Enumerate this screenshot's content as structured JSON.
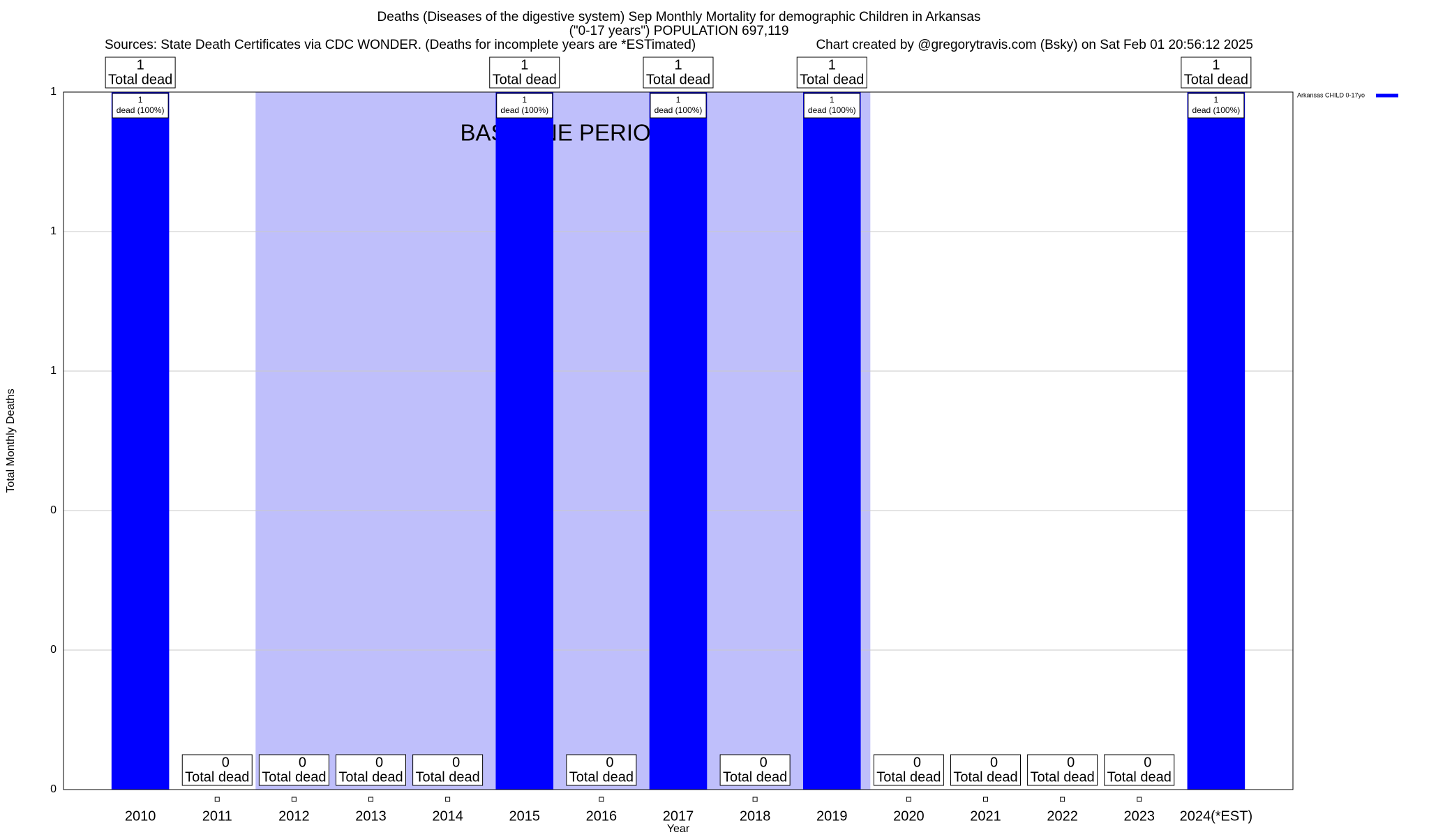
{
  "chart_data": {
    "type": "bar",
    "title": "Deaths (Diseases of the digestive system) Sep Monthly Mortality for demographic Children in Arkansas",
    "subtitle": "(\"0-17 years\") POPULATION 697,119",
    "source": "Sources: State Death Certificates via CDC WONDER. (Deaths for incomplete years are *ESTimated)",
    "credit": "Chart created by @gregorytravis.com (Bsky) on Sat Feb 01 20:56:12 2025",
    "x_label": "Year",
    "y_label": "Total Monthly Deaths",
    "categories": [
      "2010",
      "2011",
      "2012",
      "2013",
      "2014",
      "2015",
      "2016",
      "2017",
      "2018",
      "2019",
      "2020",
      "2021",
      "2022",
      "2023",
      "2024(*EST)"
    ],
    "series": [
      {
        "name": "Arkansas CHILD 0-17yo",
        "color": "#0000ff",
        "values": [
          1,
          0,
          0,
          0,
          0,
          1,
          0,
          1,
          0,
          1,
          0,
          0,
          0,
          0,
          1
        ]
      }
    ],
    "total_label": "Total dead",
    "share_labels": [
      "dead (100%)",
      null,
      null,
      null,
      null,
      "dead (100%)",
      null,
      "dead (100%)",
      null,
      "dead (100%)",
      null,
      null,
      null,
      null,
      "dead (100%)"
    ],
    "baseline": {
      "label": "BASELINE PERIOD",
      "start": "2012",
      "end": "2019",
      "color": "#bfbffb"
    },
    "ylim": [
      0,
      1
    ],
    "yticks": [
      {
        "value": 0,
        "label": "0"
      },
      {
        "value": 0.2,
        "label": "0"
      },
      {
        "value": 0.4,
        "label": "0"
      },
      {
        "value": 0.6,
        "label": "1"
      },
      {
        "value": 0.8,
        "label": "1"
      },
      {
        "value": 1,
        "label": "1"
      }
    ],
    "grid": true,
    "legend": "top-right"
  }
}
